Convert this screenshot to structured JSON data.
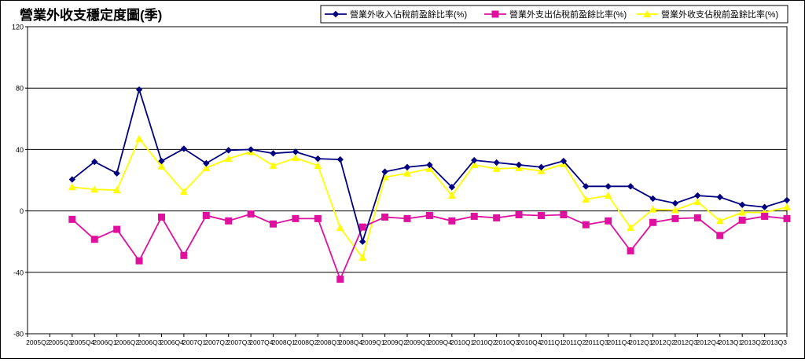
{
  "chart_data": {
    "type": "line",
    "title": "營業外收支穩定度圖(季)",
    "xlabel": "",
    "ylabel": "",
    "ylim": [
      -80,
      120
    ],
    "yticks": [
      120,
      80,
      40,
      0,
      -40,
      -80
    ],
    "ytick_labels": [
      "120",
      "80",
      "40",
      "0",
      "-40",
      "-80"
    ],
    "grid": true,
    "legend_position": "top-right",
    "x": [
      "2005Q2",
      "2005Q3",
      "2005Q4",
      "2006Q1",
      "2006Q2",
      "2006Q3",
      "2006Q4",
      "2007Q1",
      "2007Q2",
      "2007Q3",
      "2007Q4",
      "2008Q1",
      "2008Q2",
      "2008Q3",
      "2008Q4",
      "2009Q1",
      "2009Q2",
      "2009Q3",
      "2009Q4",
      "2010Q1",
      "2010Q2",
      "2010Q3",
      "2010Q4",
      "2011Q1",
      "2011Q2",
      "2011Q3",
      "2011Q4",
      "2012Q1",
      "2012Q2",
      "2012Q3",
      "2012Q4",
      "2013Q1",
      "2013Q2",
      "2013Q3"
    ],
    "series": [
      {
        "name": "營業外收入佔稅前盈餘比率(%)",
        "color": "#000080",
        "marker": "diamond",
        "values": [
          null,
          20.5,
          32,
          24.5,
          79,
          32.5,
          40.5,
          31,
          39.5,
          40,
          37.5,
          38.5,
          34,
          33.5,
          -20,
          25.5,
          28.5,
          30,
          15.5,
          33,
          31.5,
          30,
          28.5,
          32.5,
          16,
          16,
          16,
          8,
          5,
          10,
          9,
          4,
          2.5,
          7
        ]
      },
      {
        "name": "營業外支出佔稅前盈餘比率(%)",
        "color": "#E0109F",
        "marker": "square",
        "values": [
          null,
          -5.5,
          -18.5,
          -12,
          -32.5,
          -4,
          -29,
          -3,
          -6.5,
          -2,
          -8.5,
          -5,
          -5,
          -44.5,
          -10.5,
          -4,
          -5,
          -3,
          -6.5,
          -3.5,
          -4.5,
          -2.5,
          -3,
          -2.5,
          -9,
          -6.5,
          -26,
          -7.5,
          -5,
          -4.5,
          -16,
          -6,
          -3.5,
          -5
        ]
      },
      {
        "name": "營業外收支佔稅前盈餘比率(%)",
        "color": "#FFFF00",
        "marker": "triangle",
        "values": [
          null,
          15.5,
          14,
          13.5,
          47,
          29,
          12.5,
          28,
          34,
          38.5,
          29.5,
          34.5,
          29.5,
          -11,
          -30.5,
          22,
          24.5,
          27.5,
          10,
          30,
          27.5,
          28,
          26,
          30.5,
          7.5,
          10,
          -11,
          1,
          0.5,
          6,
          -6.5,
          -1,
          -1,
          2.5
        ]
      }
    ]
  }
}
